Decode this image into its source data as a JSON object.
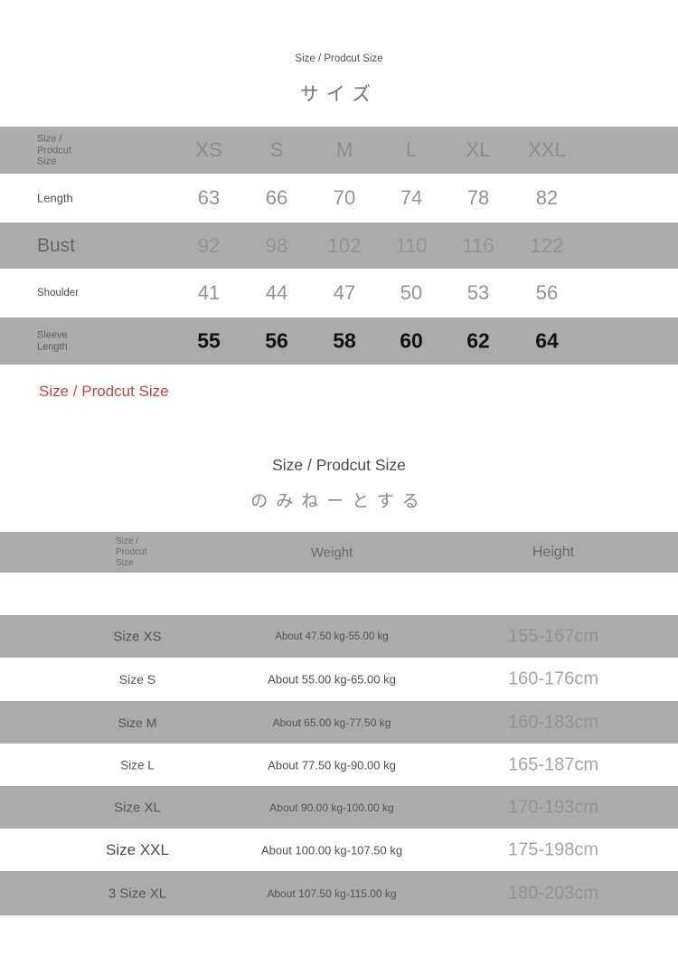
{
  "colors": {
    "band_gray": "#ababab",
    "note_red": "#c94444",
    "bold_value": "#121212"
  },
  "section1": {
    "eyebrow": "Size / Prodcut Size",
    "title": "サイズ",
    "note": "Size / Prodcut Size",
    "table": {
      "corner_lines": [
        "Size /",
        "Prodcut",
        "Size"
      ],
      "columns": [
        "XS",
        "S",
        "M",
        "L",
        "XL",
        "XXL"
      ],
      "rows": [
        {
          "label": "Length",
          "values": [
            63,
            66,
            70,
            74,
            78,
            82
          ]
        },
        {
          "label": "Bust",
          "values": [
            92,
            98,
            102,
            110,
            116,
            122
          ]
        },
        {
          "label": "Shoulder",
          "values": [
            41,
            44,
            47,
            50,
            53,
            56
          ]
        },
        {
          "label_lines": [
            "Sleeve",
            "Length"
          ],
          "values": [
            55,
            56,
            58,
            60,
            62,
            64
          ]
        }
      ]
    }
  },
  "section2": {
    "heading": "Size / Prodcut Size",
    "subheading": "のみねーとする",
    "table": {
      "corner_lines": [
        "Size /",
        "Prodcut",
        "Size"
      ],
      "weight_header": "Weight",
      "height_header": "Height",
      "rows": [
        {
          "size": "Size XS",
          "weight": "About 47.50 kg-55.00 kg",
          "height": "155-167cm"
        },
        {
          "size": "Size S",
          "weight": "About 55.00 kg-65.00 kg",
          "height": "160-176cm"
        },
        {
          "size": "Size M",
          "weight": "About 65.00 kg-77.50 kg",
          "height": "160-183cm"
        },
        {
          "size": "Size L",
          "weight": "About 77.50 kg-90.00 kg",
          "height": "165-187cm"
        },
        {
          "size": "Size XL",
          "weight": "About 90.00 kg-100.00 kg",
          "height": "170-193cm"
        },
        {
          "size": "Size XXL",
          "weight": "About 100.00 kg-107.50 kg",
          "height": "175-198cm"
        },
        {
          "size": "3 Size XL",
          "weight": "About 107.50 kg-115.00 kg",
          "height": "180-203cm"
        }
      ]
    }
  }
}
